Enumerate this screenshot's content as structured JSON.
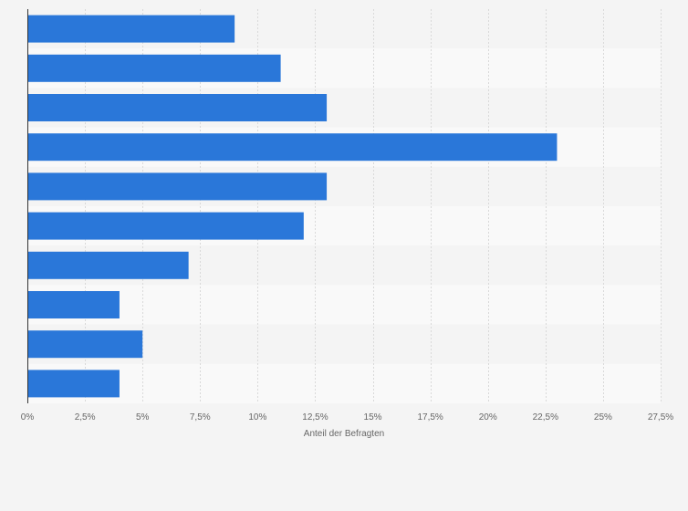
{
  "chart_data": {
    "type": "bar",
    "orientation": "horizontal",
    "categories": [
      "",
      "",
      "",
      "",
      "",
      "",
      "",
      "",
      "",
      ""
    ],
    "values": [
      9,
      11,
      13,
      23,
      13,
      12,
      7,
      4,
      5,
      4
    ],
    "xlabel": "Anteil der Befragten",
    "ylabel": "",
    "xlim": [
      0,
      27.5
    ],
    "x_ticks": [
      0,
      2.5,
      5,
      7.5,
      10,
      12.5,
      15,
      17.5,
      20,
      22.5,
      25,
      27.5
    ],
    "x_tick_labels": [
      "0%",
      "2,5%",
      "5%",
      "7,5%",
      "10%",
      "12,5%",
      "15%",
      "17,5%",
      "20%",
      "22,5%",
      "25%",
      "27,5%"
    ],
    "grid": true,
    "bar_color": "#2a77d9",
    "band_colors": [
      "#f4f4f4",
      "#f9f9f9"
    ]
  }
}
